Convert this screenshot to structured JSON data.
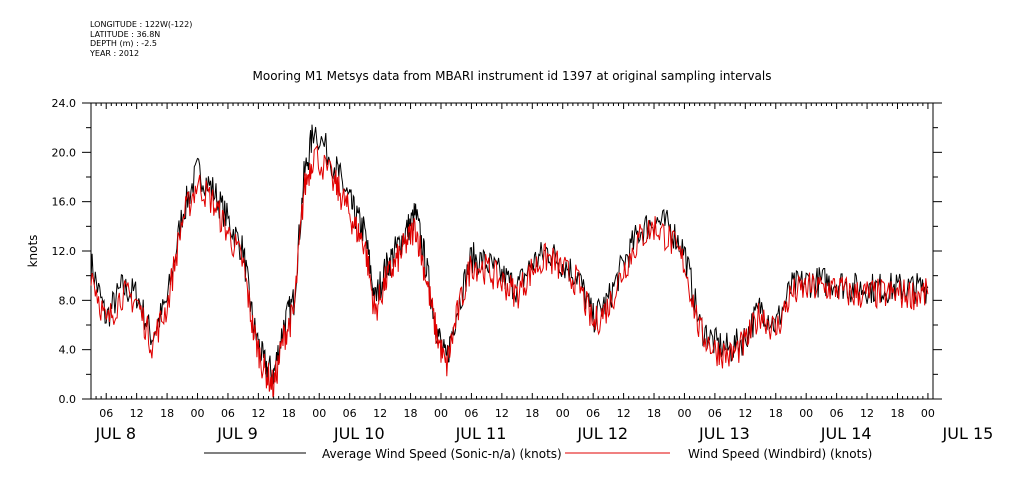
{
  "meta": {
    "longitude": "LONGITUDE : 122W(-122)",
    "latitude": "LATITUDE : 36.8N",
    "depth": "DEPTH (m) : -2.5",
    "year": "YEAR : 2012"
  },
  "chart_data": {
    "type": "line",
    "title": "Mooring M1 Metsys data from MBARI instrument id 1397 at original sampling intervals",
    "ylabel": "knots",
    "ylim": [
      0,
      24
    ],
    "y_ticks": [
      "0.0",
      "4.0",
      "8.0",
      "12.0",
      "16.0",
      "20.0",
      "24.0"
    ],
    "x_unit": "hours since JUL 8 00:00",
    "xlim": [
      3,
      169
    ],
    "hour_ticks": [
      "06",
      "12",
      "18",
      "00",
      "06",
      "12",
      "18",
      "00",
      "06",
      "12",
      "18",
      "00",
      "06",
      "12",
      "18",
      "00",
      "06",
      "12",
      "18",
      "00",
      "06",
      "12",
      "18",
      "00",
      "06",
      "12",
      "18",
      "00"
    ],
    "day_labels": [
      "JUL 8",
      "JUL 9",
      "JUL 10",
      "JUL 11",
      "JUL 12",
      "JUL 13",
      "JUL 14",
      "JUL 15"
    ],
    "series": [
      {
        "name": "Average Wind Speed (Sonic-n/a) (knots)",
        "color": "#000000",
        "x": [
          3,
          6,
          9,
          12,
          15,
          18,
          21,
          24,
          27,
          30,
          33,
          35,
          37,
          39,
          41,
          43,
          45,
          47,
          51,
          53,
          55,
          57,
          59,
          61,
          63,
          65,
          67,
          69,
          71,
          73,
          75,
          78,
          81,
          84,
          87,
          90,
          93,
          96,
          99,
          102,
          105,
          108,
          111,
          114,
          117,
          120,
          123,
          126,
          129,
          132,
          135,
          138,
          141,
          144,
          147,
          150,
          153,
          156,
          159,
          162,
          165,
          168
        ],
        "y": [
          11.0,
          6.5,
          9.0,
          8.5,
          5.0,
          8.0,
          15.0,
          18.5,
          17.0,
          14.5,
          12.0,
          6.0,
          3.0,
          2.0,
          6.0,
          8.0,
          18.0,
          22.0,
          19.0,
          17.0,
          15.0,
          13.5,
          8.0,
          10.5,
          12.0,
          13.5,
          15.0,
          11.0,
          6.0,
          3.0,
          7.0,
          11.5,
          11.0,
          10.0,
          9.0,
          11.0,
          12.0,
          11.0,
          10.0,
          6.5,
          8.0,
          11.0,
          13.5,
          14.5,
          14.0,
          12.0,
          6.0,
          4.5,
          4.0,
          5.0,
          7.5,
          6.0,
          9.0,
          9.5,
          9.5,
          9.5,
          9.0,
          9.0,
          9.0,
          9.0,
          9.0,
          9.0
        ]
      },
      {
        "name": "Wind Speed (Windbird) (knots)",
        "color": "#e00000",
        "x": [
          3,
          6,
          9,
          12,
          15,
          18,
          21,
          24,
          27,
          30,
          33,
          35,
          37,
          39,
          41,
          43,
          45,
          47,
          51,
          53,
          55,
          57,
          59,
          61,
          63,
          65,
          67,
          69,
          71,
          73,
          75,
          78,
          81,
          84,
          87,
          90,
          93,
          96,
          99,
          102,
          105,
          108,
          111,
          114,
          117,
          120,
          123,
          126,
          129,
          132,
          135,
          138,
          141,
          144,
          147,
          150,
          153,
          156,
          159,
          162,
          165,
          168
        ],
        "y": [
          10.5,
          6.0,
          8.5,
          8.0,
          4.5,
          7.5,
          14.5,
          17.5,
          16.0,
          13.5,
          11.0,
          5.5,
          2.5,
          1.0,
          5.0,
          7.0,
          17.0,
          20.0,
          17.5,
          16.0,
          14.0,
          12.5,
          7.0,
          9.5,
          11.0,
          12.5,
          14.0,
          10.0,
          5.5,
          2.5,
          6.5,
          11.0,
          10.5,
          9.5,
          8.5,
          10.5,
          11.5,
          10.5,
          9.5,
          6.0,
          7.5,
          10.5,
          13.0,
          14.0,
          13.0,
          11.0,
          5.5,
          4.0,
          3.5,
          4.5,
          7.0,
          5.5,
          8.5,
          9.0,
          9.0,
          9.0,
          8.5,
          8.5,
          8.5,
          8.5,
          8.5,
          8.5
        ]
      }
    ]
  }
}
